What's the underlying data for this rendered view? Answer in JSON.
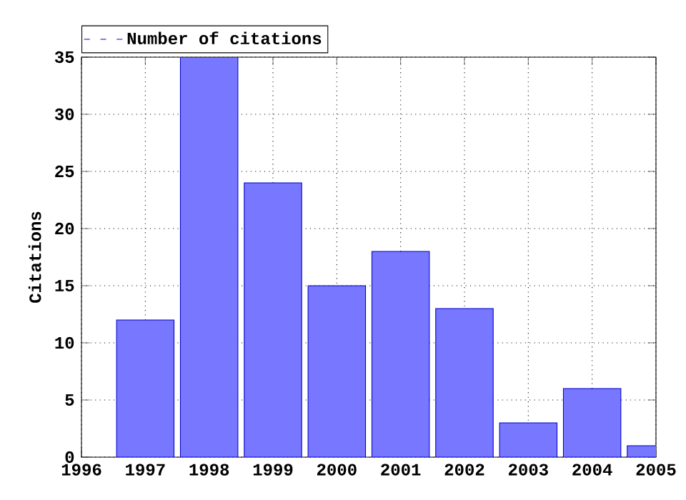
{
  "chart_data": {
    "type": "bar",
    "ylabel": "Citations",
    "x": [
      1997,
      1998,
      1999,
      2000,
      2001,
      2002,
      2003,
      2004,
      2005
    ],
    "series": [
      {
        "name": "Number of citations",
        "color": "#7777ff",
        "values": [
          12,
          35,
          24,
          15,
          18,
          13,
          3,
          6,
          1
        ]
      }
    ],
    "xlim": [
      1996,
      2005
    ],
    "xticks": [
      1996,
      1997,
      1998,
      1999,
      2000,
      2001,
      2002,
      2003,
      2004,
      2005
    ],
    "ylim": [
      0,
      35
    ],
    "yticks": [
      0,
      5,
      10,
      15,
      20,
      25,
      30,
      35
    ],
    "grid": true,
    "legend": "top left"
  }
}
